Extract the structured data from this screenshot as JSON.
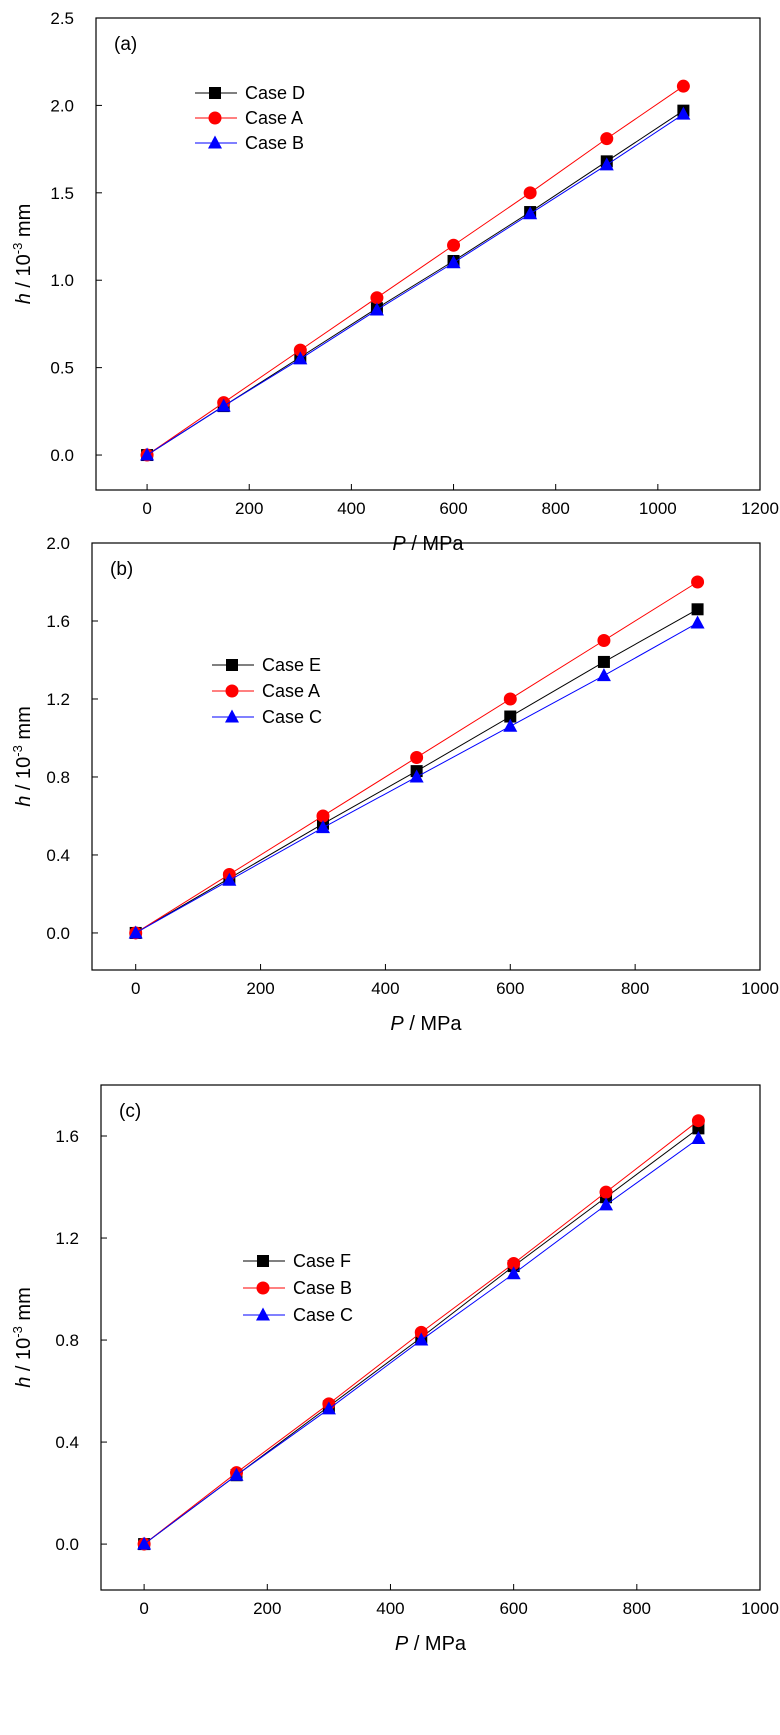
{
  "chart_data": [
    {
      "panel_label": "(a)",
      "type": "line",
      "xlabel_var": "P",
      "xlabel_unit": " / MPa",
      "ylabel_var": "h",
      "ylabel_unit_pre": " / 10",
      "ylabel_exp": "-3",
      "ylabel_unit_post": " mm",
      "xlim": [
        -100,
        1200
      ],
      "ylim": [
        -0.2,
        2.5
      ],
      "xticks": [
        0,
        200,
        400,
        600,
        800,
        1000,
        1200
      ],
      "yticks": [
        0.0,
        0.5,
        1.0,
        1.5,
        2.0,
        2.5
      ],
      "ytick_labels": [
        "0.0",
        "0.5",
        "1.0",
        "1.5",
        "2.0",
        "2.5"
      ],
      "legend_position": "top-left",
      "series": [
        {
          "name": "Case D",
          "color": "#000000",
          "marker": "square",
          "x": [
            0,
            150,
            300,
            450,
            600,
            750,
            900,
            1050
          ],
          "y": [
            0.0,
            0.28,
            0.56,
            0.84,
            1.11,
            1.39,
            1.68,
            1.97
          ]
        },
        {
          "name": "Case A",
          "color": "#ff0000",
          "marker": "circle",
          "x": [
            0,
            150,
            300,
            450,
            600,
            750,
            900,
            1050
          ],
          "y": [
            0.0,
            0.3,
            0.6,
            0.9,
            1.2,
            1.5,
            1.81,
            2.11
          ]
        },
        {
          "name": "Case B",
          "color": "#0000ff",
          "marker": "triangle",
          "x": [
            0,
            150,
            300,
            450,
            600,
            750,
            900,
            1050
          ],
          "y": [
            0.0,
            0.28,
            0.55,
            0.83,
            1.1,
            1.38,
            1.66,
            1.95
          ]
        }
      ]
    },
    {
      "panel_label": "(b)",
      "type": "line",
      "xlabel_var": "P",
      "xlabel_unit": " / MPa",
      "ylabel_var": "h",
      "ylabel_unit_pre": " / 10",
      "ylabel_exp": "-3",
      "ylabel_unit_post": " mm",
      "xlim": [
        -70,
        1000
      ],
      "ylim": [
        -0.19,
        2.0
      ],
      "xticks": [
        0,
        200,
        400,
        600,
        800,
        1000
      ],
      "yticks": [
        0.0,
        0.4,
        0.8,
        1.2,
        1.6,
        2.0
      ],
      "ytick_labels": [
        "0.0",
        "0.4",
        "0.8",
        "1.2",
        "1.6",
        "2.0"
      ],
      "legend_position": "top-left",
      "series": [
        {
          "name": "Case E",
          "color": "#000000",
          "marker": "square",
          "x": [
            0,
            150,
            300,
            450,
            600,
            750,
            900
          ],
          "y": [
            0.0,
            0.28,
            0.56,
            0.83,
            1.11,
            1.39,
            1.66
          ]
        },
        {
          "name": "Case A",
          "color": "#ff0000",
          "marker": "circle",
          "x": [
            0,
            150,
            300,
            450,
            600,
            750,
            900
          ],
          "y": [
            0.0,
            0.3,
            0.6,
            0.9,
            1.2,
            1.5,
            1.8
          ]
        },
        {
          "name": "Case C",
          "color": "#0000ff",
          "marker": "triangle",
          "x": [
            0,
            150,
            300,
            450,
            600,
            750,
            900
          ],
          "y": [
            0.0,
            0.27,
            0.54,
            0.8,
            1.06,
            1.32,
            1.59
          ]
        }
      ]
    },
    {
      "panel_label": "(c)",
      "type": "line",
      "xlabel_var": "P",
      "xlabel_unit": " /  MPa",
      "ylabel_var": "h",
      "ylabel_unit_pre": " / 10",
      "ylabel_exp": "-3",
      "ylabel_unit_post": " mm",
      "xlim": [
        -70,
        1000
      ],
      "ylim": [
        -0.18,
        1.8
      ],
      "xticks": [
        0,
        200,
        400,
        600,
        800,
        1000
      ],
      "yticks": [
        0.0,
        0.4,
        0.8,
        1.2,
        1.6
      ],
      "ytick_labels": [
        "0.0",
        "0.4",
        "0.8",
        "1.2",
        "1.6"
      ],
      "legend_position": "top-left",
      "series": [
        {
          "name": "Case F",
          "color": "#000000",
          "marker": "square",
          "x": [
            0,
            150,
            300,
            450,
            600,
            750,
            900
          ],
          "y": [
            0.0,
            0.27,
            0.54,
            0.81,
            1.09,
            1.36,
            1.63
          ]
        },
        {
          "name": "Case B",
          "color": "#ff0000",
          "marker": "circle",
          "x": [
            0,
            150,
            300,
            450,
            600,
            750,
            900
          ],
          "y": [
            0.0,
            0.28,
            0.55,
            0.83,
            1.1,
            1.38,
            1.66
          ]
        },
        {
          "name": "Case C",
          "color": "#0000ff",
          "marker": "triangle",
          "x": [
            0,
            150,
            300,
            450,
            600,
            750,
            900
          ],
          "y": [
            0.0,
            0.27,
            0.53,
            0.8,
            1.06,
            1.33,
            1.59
          ]
        }
      ]
    }
  ]
}
